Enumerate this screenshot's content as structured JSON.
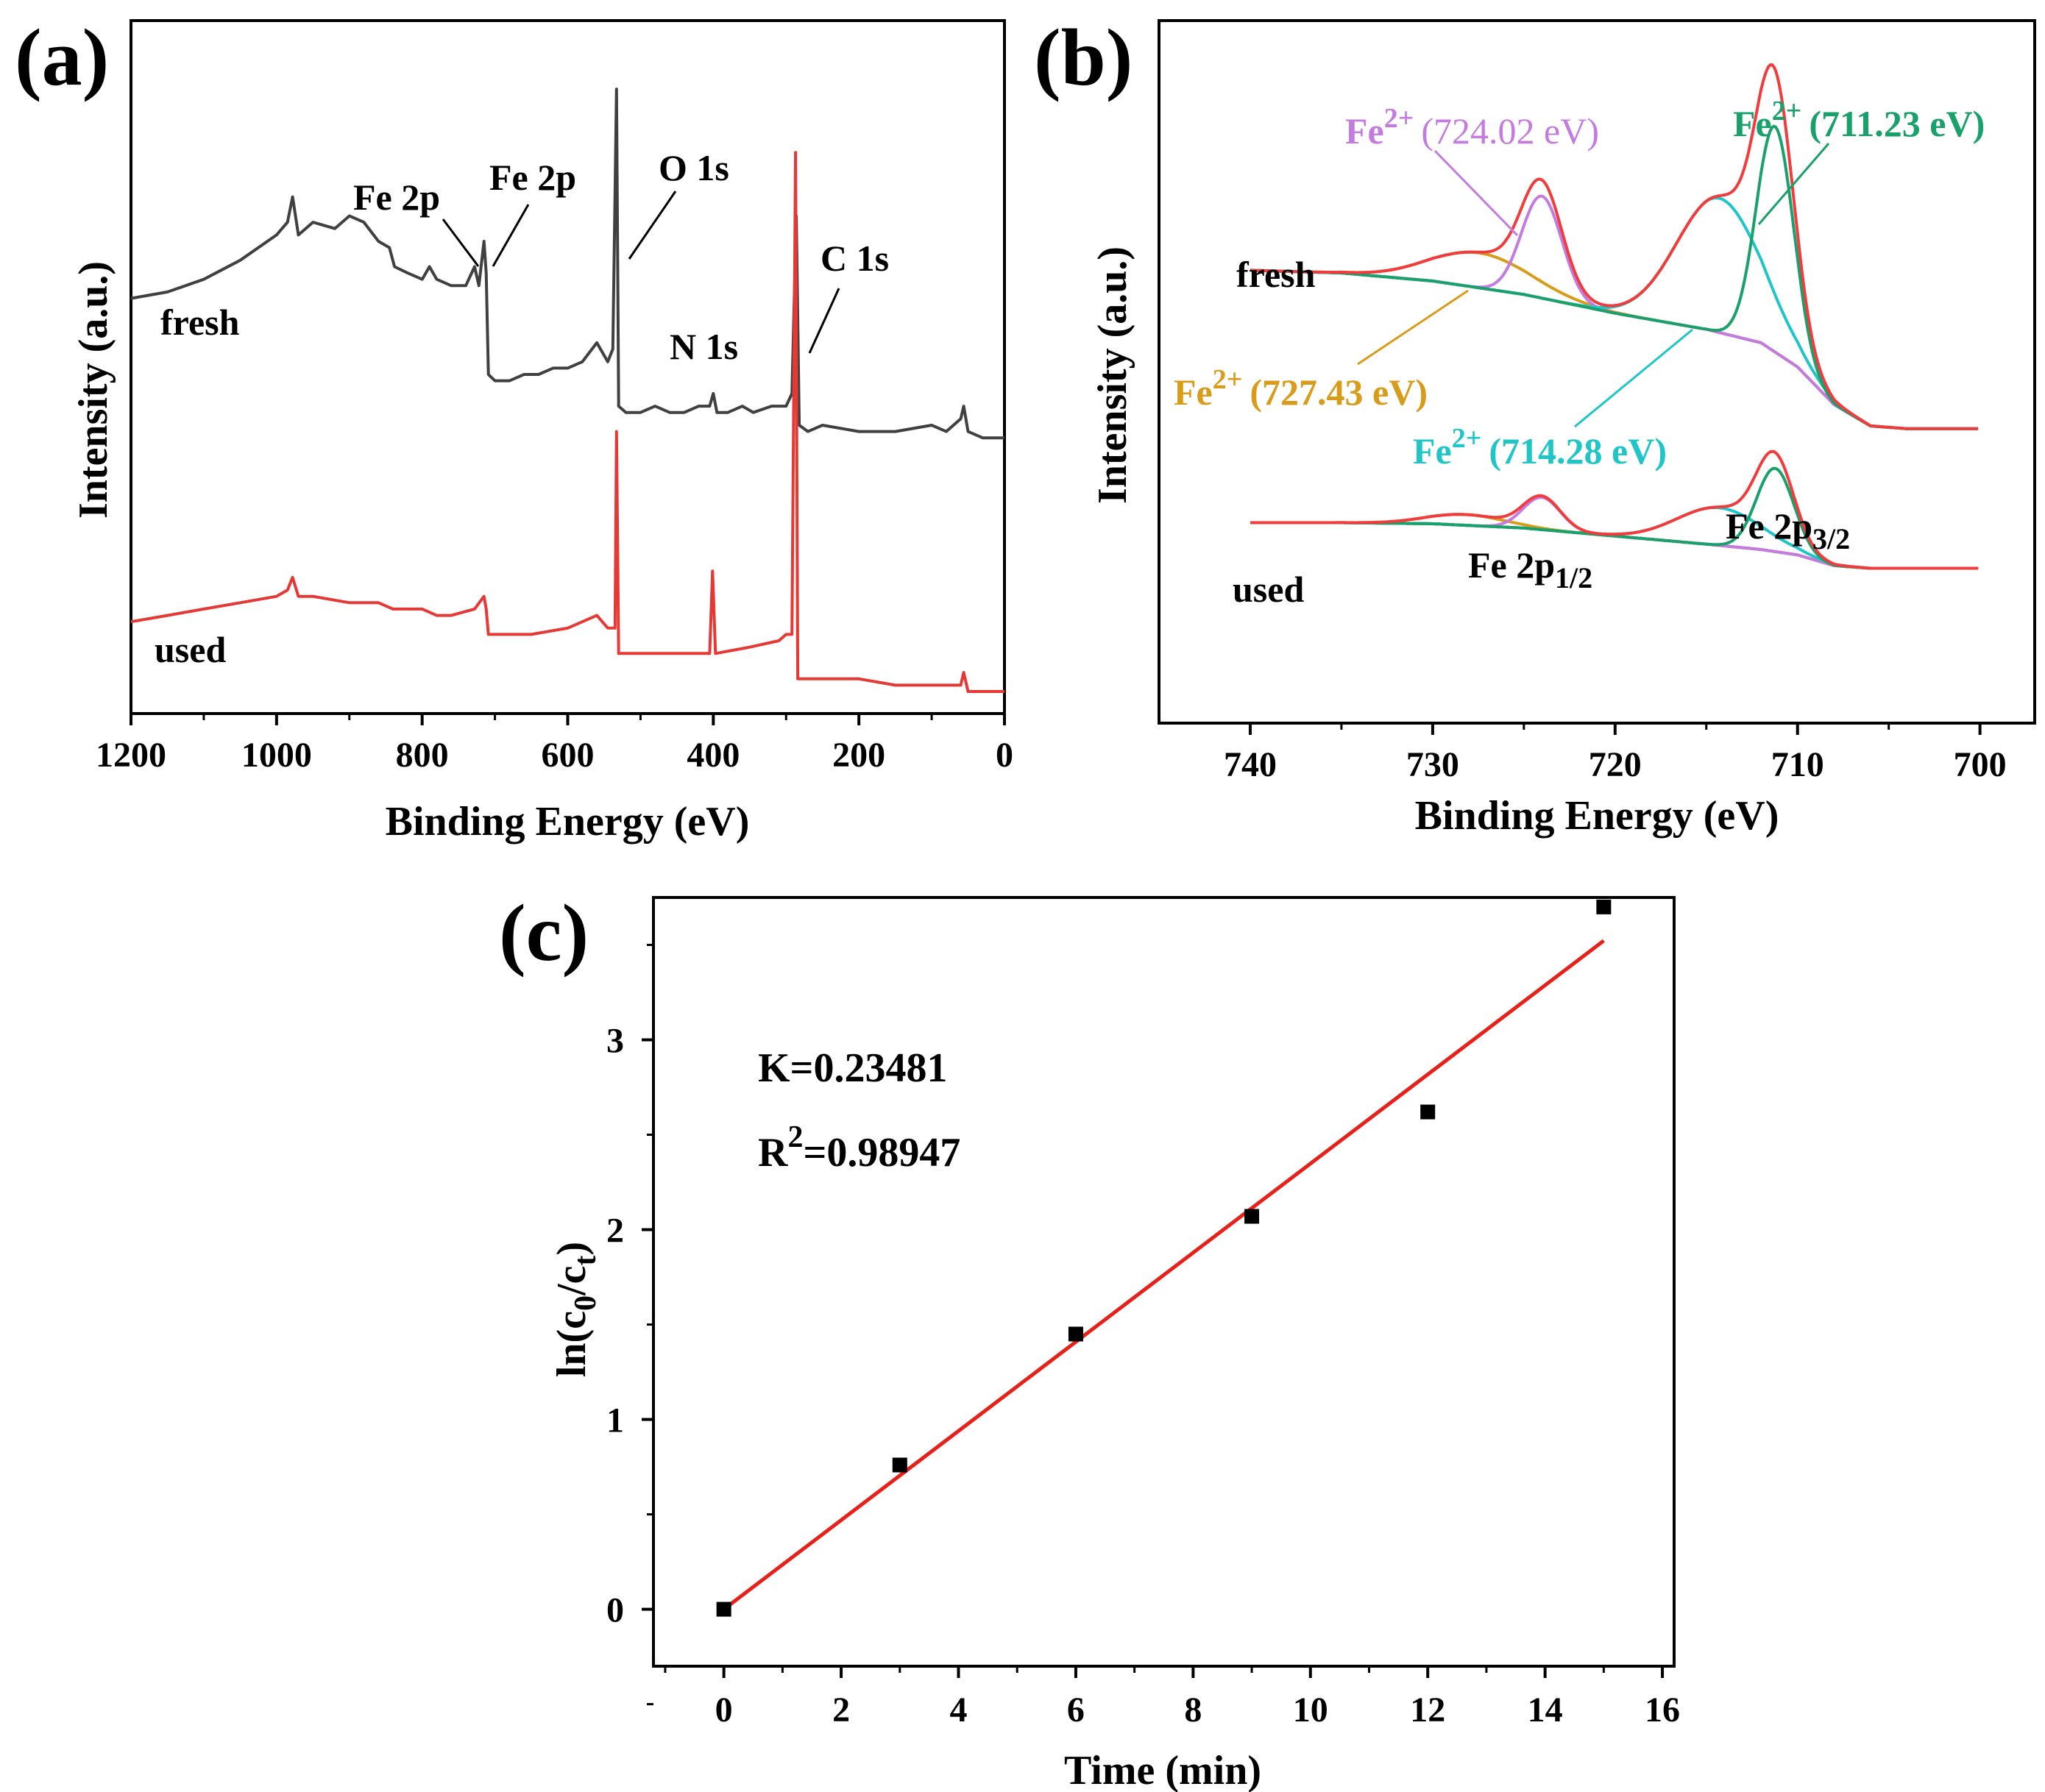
{
  "chart_data": [
    {
      "panel": "(a)",
      "type": "line",
      "title": "",
      "xlabel": "Binding Energy (eV)",
      "ylabel": "Intensity (a.u.)",
      "xlim": [
        1200,
        0
      ],
      "x_ticks": [
        "1200",
        "1000",
        "800",
        "600",
        "400",
        "200",
        "0"
      ],
      "series": [
        {
          "name": "fresh",
          "color": "#404040",
          "points": [
            [
              1200,
              0.62
            ],
            [
              1150,
              0.63
            ],
            [
              1100,
              0.65
            ],
            [
              1050,
              0.68
            ],
            [
              1000,
              0.72
            ],
            [
              985,
              0.74
            ],
            [
              978,
              0.78
            ],
            [
              970,
              0.72
            ],
            [
              950,
              0.74
            ],
            [
              920,
              0.73
            ],
            [
              900,
              0.75
            ],
            [
              880,
              0.74
            ],
            [
              860,
              0.71
            ],
            [
              845,
              0.7
            ],
            [
              838,
              0.67
            ],
            [
              820,
              0.66
            ],
            [
              800,
              0.65
            ],
            [
              790,
              0.67
            ],
            [
              780,
              0.65
            ],
            [
              760,
              0.64
            ],
            [
              740,
              0.64
            ],
            [
              728,
              0.67
            ],
            [
              722,
              0.64
            ],
            [
              715,
              0.71
            ],
            [
              712,
              0.66
            ],
            [
              709,
              0.5
            ],
            [
              700,
              0.49
            ],
            [
              680,
              0.49
            ],
            [
              660,
              0.5
            ],
            [
              640,
              0.5
            ],
            [
              620,
              0.51
            ],
            [
              600,
              0.51
            ],
            [
              580,
              0.52
            ],
            [
              560,
              0.55
            ],
            [
              545,
              0.52
            ],
            [
              538,
              0.54
            ],
            [
              533,
              0.95
            ],
            [
              530,
              0.45
            ],
            [
              520,
              0.44
            ],
            [
              500,
              0.44
            ],
            [
              480,
              0.45
            ],
            [
              460,
              0.44
            ],
            [
              440,
              0.44
            ],
            [
              420,
              0.45
            ],
            [
              405,
              0.45
            ],
            [
              400,
              0.47
            ],
            [
              395,
              0.44
            ],
            [
              380,
              0.44
            ],
            [
              360,
              0.45
            ],
            [
              345,
              0.44
            ],
            [
              320,
              0.45
            ],
            [
              300,
              0.45
            ],
            [
              292,
              0.47
            ],
            [
              286,
              0.75
            ],
            [
              282,
              0.42
            ],
            [
              270,
              0.41
            ],
            [
              250,
              0.42
            ],
            [
              200,
              0.41
            ],
            [
              150,
              0.41
            ],
            [
              100,
              0.42
            ],
            [
              80,
              0.41
            ],
            [
              60,
              0.43
            ],
            [
              56,
              0.45
            ],
            [
              50,
              0.41
            ],
            [
              30,
              0.4
            ],
            [
              0,
              0.4
            ]
          ]
        },
        {
          "name": "used",
          "color": "#e53935",
          "points": [
            [
              1200,
              0.11
            ],
            [
              1150,
              0.12
            ],
            [
              1100,
              0.13
            ],
            [
              1050,
              0.14
            ],
            [
              1000,
              0.15
            ],
            [
              985,
              0.16
            ],
            [
              978,
              0.18
            ],
            [
              970,
              0.15
            ],
            [
              950,
              0.15
            ],
            [
              900,
              0.14
            ],
            [
              860,
              0.14
            ],
            [
              840,
              0.13
            ],
            [
              800,
              0.13
            ],
            [
              780,
              0.12
            ],
            [
              760,
              0.12
            ],
            [
              728,
              0.13
            ],
            [
              715,
              0.15
            ],
            [
              712,
              0.13
            ],
            [
              709,
              0.09
            ],
            [
              700,
              0.09
            ],
            [
              650,
              0.09
            ],
            [
              600,
              0.1
            ],
            [
              560,
              0.12
            ],
            [
              545,
              0.1
            ],
            [
              535,
              0.1
            ],
            [
              533,
              0.41
            ],
            [
              530,
              0.06
            ],
            [
              520,
              0.06
            ],
            [
              500,
              0.06
            ],
            [
              450,
              0.06
            ],
            [
              405,
              0.06
            ],
            [
              401,
              0.19
            ],
            [
              397,
              0.06
            ],
            [
              350,
              0.07
            ],
            [
              310,
              0.08
            ],
            [
              300,
              0.09
            ],
            [
              292,
              0.09
            ],
            [
              287,
              0.85
            ],
            [
              284,
              0.02
            ],
            [
              270,
              0.02
            ],
            [
              200,
              0.02
            ],
            [
              150,
              0.01
            ],
            [
              100,
              0.01
            ],
            [
              60,
              0.01
            ],
            [
              56,
              0.03
            ],
            [
              50,
              0.0
            ],
            [
              0,
              0.0
            ]
          ]
        }
      ],
      "curve_labels": [
        "fresh",
        "used"
      ],
      "annotations": [
        {
          "text": "Fe 2p",
          "x": 722
        },
        {
          "text": "Fe 2p",
          "x": 711
        },
        {
          "text": "O 1s",
          "x": 530
        },
        {
          "text": "N 1s",
          "x": 400
        },
        {
          "text": "C 1s",
          "x": 284
        }
      ]
    },
    {
      "panel": "(b)",
      "type": "line",
      "title": "",
      "xlabel": "Binding Energy (eV)",
      "ylabel": "Intensity (a.u.)",
      "xlim": [
        745,
        697
      ],
      "x_ticks": [
        "740",
        "730",
        "720",
        "710",
        "700"
      ],
      "fits": {
        "fresh": {
          "background": [
            [
              740,
              0.72
            ],
            [
              735,
              0.715
            ],
            [
              730,
              0.7
            ],
            [
              725,
              0.675
            ],
            [
              720,
              0.64
            ],
            [
              715,
              0.61
            ],
            [
              712,
              0.585
            ],
            [
              710,
              0.54
            ],
            [
              708,
              0.47
            ],
            [
              706,
              0.43
            ],
            [
              704,
              0.425
            ],
            [
              700,
              0.425
            ]
          ],
          "peaks": [
            {
              "center": 711.23,
              "height": 0.42,
              "fwhm": 2.4,
              "color": "#1aa06a"
            },
            {
              "center": 714.28,
              "height": 0.25,
              "fwhm": 5.5,
              "color": "#20c5c8"
            },
            {
              "center": 724.02,
              "height": 0.19,
              "fwhm": 2.6,
              "color": "#c47be0"
            },
            {
              "center": 727.43,
              "height": 0.065,
              "fwhm": 6.5,
              "color": "#d89c1a"
            }
          ]
        },
        "used": {
          "background": [
            [
              740,
              0.25
            ],
            [
              735,
              0.25
            ],
            [
              730,
              0.248
            ],
            [
              725,
              0.24
            ],
            [
              720,
              0.225
            ],
            [
              715,
              0.21
            ],
            [
              712,
              0.2
            ],
            [
              710,
              0.19
            ],
            [
              708,
              0.17
            ],
            [
              706,
              0.165
            ],
            [
              704,
              0.165
            ],
            [
              700,
              0.165
            ]
          ],
          "peaks": [
            {
              "center": 711.23,
              "height": 0.155,
              "fwhm": 2.4,
              "color": "#1aa06a"
            },
            {
              "center": 714.28,
              "height": 0.07,
              "fwhm": 5.5,
              "color": "#20c5c8"
            },
            {
              "center": 724.02,
              "height": 0.06,
              "fwhm": 2.4,
              "color": "#c47be0"
            },
            {
              "center": 728.2,
              "height": 0.02,
              "fwhm": 5.0,
              "color": "#d89c1a"
            }
          ]
        }
      },
      "envelope_color": "#f03c3c",
      "curve_labels": [
        "fresh",
        "used"
      ],
      "peak_labels": [
        {
          "ion": "Fe",
          "charge": "2+",
          "energy": "(724.02 eV)",
          "color": "#c47be0"
        },
        {
          "ion": "Fe",
          "charge": "2+",
          "energy": "(711.23 eV)",
          "color": "#1aa06a"
        },
        {
          "ion": "Fe",
          "charge": "2+",
          "energy": "(727.43 eV)",
          "color": "#d89c1a"
        },
        {
          "ion": "Fe",
          "charge": "2+",
          "energy": "(714.28 eV)",
          "color": "#20c5c8"
        }
      ],
      "orbital_labels": [
        {
          "base": "Fe 2p",
          "sub": "1/2"
        },
        {
          "base": "Fe 2p",
          "sub": "3/2"
        }
      ]
    },
    {
      "panel": "(c)",
      "type": "scatter",
      "title": "",
      "xlabel": "Time (min)",
      "ylabel": "ln(c0/ct)",
      "ylabel_parts": {
        "pre": "ln(c",
        "sub1": "0",
        "mid": "/c",
        "sub2": "t",
        "post": ")"
      },
      "xlim": [
        -1.2,
        16.2
      ],
      "ylim": [
        -0.3,
        3.75
      ],
      "x_ticks": [
        "0",
        "2",
        "4",
        "6",
        "8",
        "10",
        "12",
        "14",
        "16"
      ],
      "y_ticks": [
        "0",
        "1",
        "2",
        "3"
      ],
      "x": [
        0,
        3,
        6,
        9,
        12,
        15
      ],
      "y": [
        0,
        0.76,
        1.45,
        2.07,
        2.62,
        3.7
      ],
      "marker_color": "#000000",
      "fit_line": {
        "slope": 0.23481,
        "intercept": 0.0,
        "x_range": [
          0,
          15
        ],
        "color": "#e8201a"
      },
      "k_text": "K=0.23481",
      "r2_label": "R",
      "r2_sup": "2",
      "r2_value": "=0.98947"
    }
  ]
}
